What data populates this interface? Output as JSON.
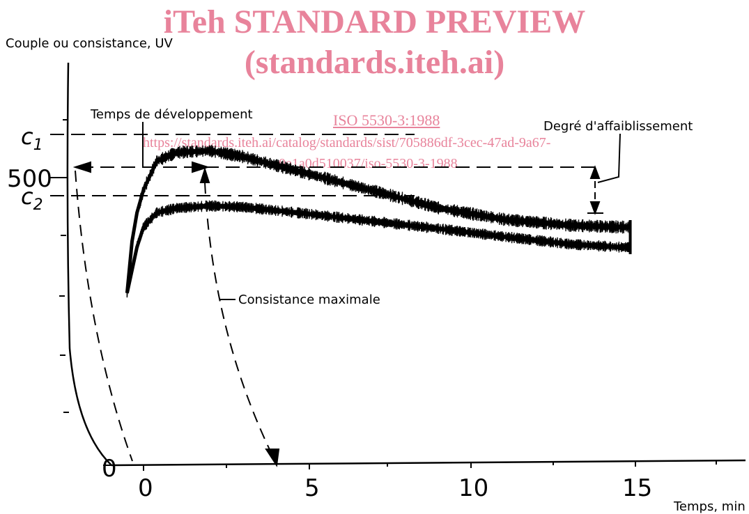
{
  "watermark": {
    "title": "iTeh STANDARD PREVIEW",
    "subtitle": "(standards.iteh.ai)",
    "standard_link": "ISO 5530-3:1988",
    "url_line1": "https://standards.iteh.ai/catalog/standards/sist/705886df-3cec-47ad-9a67-",
    "url_line2": "0e1a0d510037/iso-5530-3-1988",
    "color": "#e8839b"
  },
  "chart_data": {
    "type": "line",
    "ylabel": "Couple ou consistance, UV",
    "xlabel": "Temps, min",
    "x_ticks": [
      "0",
      "5",
      "10",
      "15"
    ],
    "y_ticks": [
      "0",
      "500"
    ],
    "reference_levels": [
      "c1",
      "c2"
    ],
    "ylim": [
      0,
      900
    ],
    "xlim": [
      -1,
      18
    ],
    "annotations": {
      "development_time": "Temps de développement",
      "max_consistency": "Consistance maximale",
      "weakening_degree": "Degré d'affaiblissement"
    },
    "series": [
      {
        "values_x": [
          -0.5,
          -0.35,
          -0.2,
          0,
          0.4,
          1,
          2,
          3,
          5,
          7,
          9,
          11,
          13,
          14.5,
          14.8
        ],
        "values_y": [
          300,
          390,
          440,
          480,
          530,
          545,
          548,
          538,
          508,
          478,
          448,
          428,
          418,
          415,
          415
        ]
      },
      {
        "values_x": [
          -0.5,
          -0.35,
          -0.2,
          0,
          0.4,
          1,
          2,
          3,
          5,
          7,
          9,
          11,
          13,
          14.5,
          14.8
        ],
        "values_y": [
          300,
          340,
          380,
          415,
          440,
          448,
          452,
          450,
          438,
          425,
          412,
          398,
          385,
          380,
          380
        ]
      }
    ]
  }
}
